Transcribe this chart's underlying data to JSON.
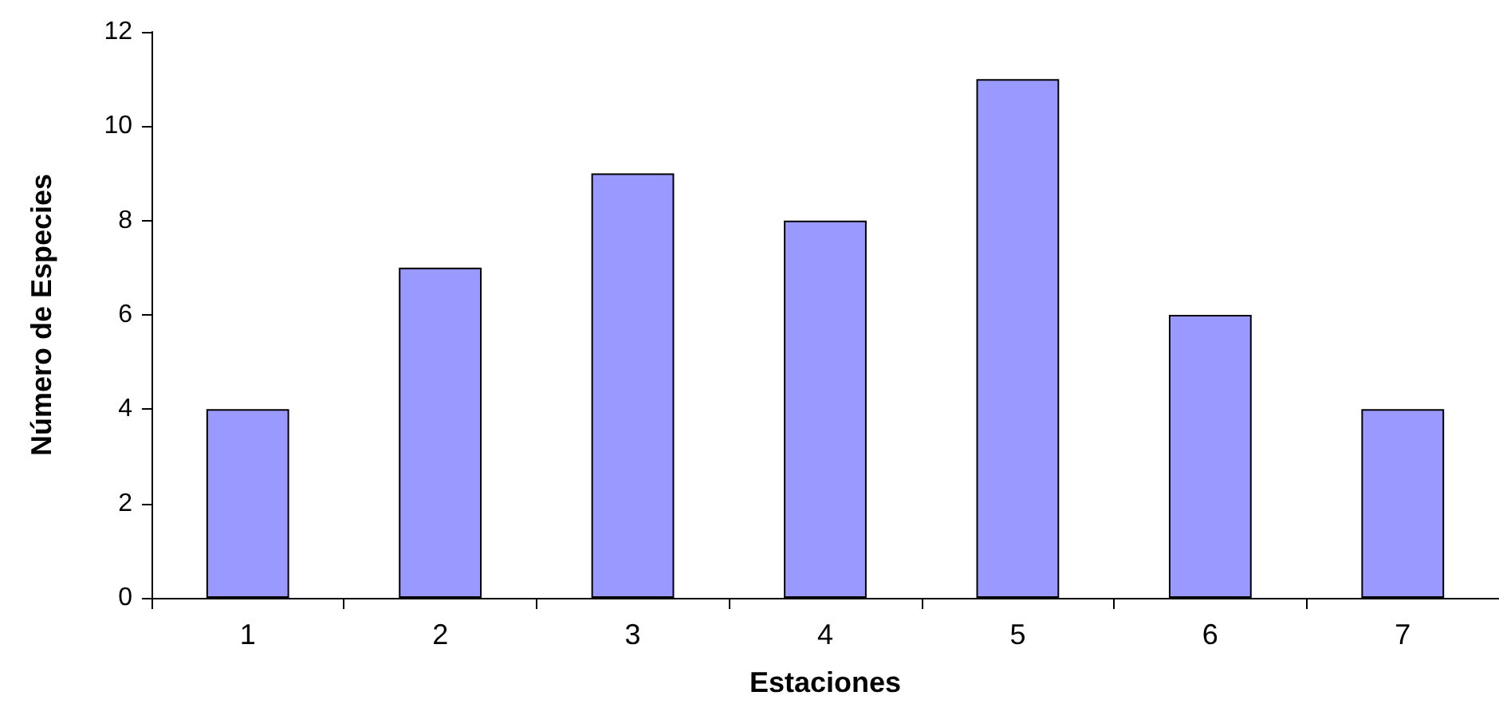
{
  "chart_data": {
    "type": "bar",
    "xlabel": "Estaciones",
    "ylabel": "Número de Especies",
    "categories": [
      "1",
      "2",
      "3",
      "4",
      "5",
      "6",
      "7"
    ],
    "values": [
      4,
      7,
      9,
      8,
      11,
      6,
      4
    ],
    "color": "#9999ff",
    "ylim": [
      0,
      12
    ],
    "yticks": [
      0,
      2,
      4,
      6,
      8,
      10,
      12
    ],
    "grid": false
  }
}
